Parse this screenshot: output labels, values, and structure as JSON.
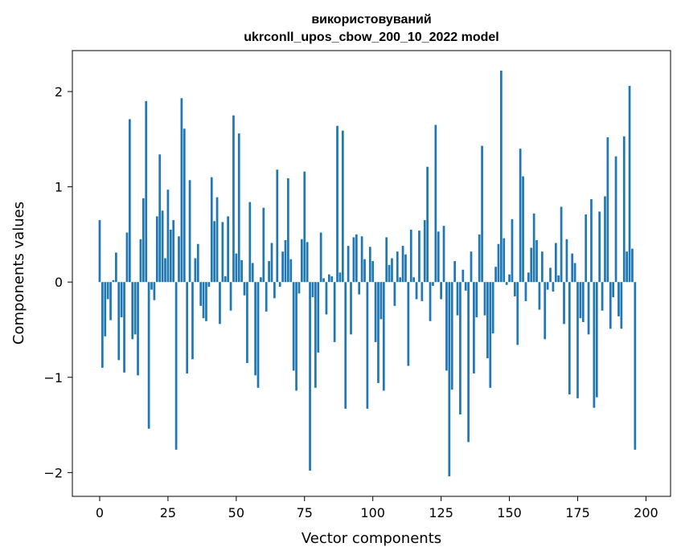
{
  "chart_data": {
    "type": "bar",
    "title_line1": "використовуваний",
    "title_line2": "ukrconll_upos_cbow_200_10_2022 model",
    "xlabel": "Vector components",
    "ylabel": "Components values",
    "xlim": [
      -10,
      209
    ],
    "ylim": [
      -2.25,
      2.43
    ],
    "xticks": [
      0,
      25,
      50,
      75,
      100,
      125,
      150,
      175,
      200
    ],
    "yticks": [
      -2,
      -1,
      0,
      1,
      2
    ],
    "ytick_labels": [
      "−2",
      "−1",
      "0",
      "1",
      "2"
    ],
    "grid": false,
    "bar_color": "#1f77b4",
    "values": [
      0.65,
      -0.9,
      -0.57,
      -0.18,
      -0.4,
      0.02,
      0.31,
      -0.82,
      -0.37,
      -0.95,
      0.52,
      1.71,
      -0.6,
      -0.55,
      -0.98,
      0.45,
      0.88,
      1.9,
      -1.54,
      -0.08,
      -0.19,
      0.69,
      1.34,
      0.75,
      0.25,
      0.97,
      0.55,
      0.65,
      -1.76,
      0.48,
      1.93,
      1.61,
      -0.96,
      1.07,
      -0.81,
      0.25,
      0.4,
      -0.25,
      -0.38,
      -0.41,
      -0.05,
      1.1,
      0.64,
      0.89,
      -0.44,
      0.63,
      0.06,
      0.69,
      -0.3,
      1.75,
      0.3,
      1.56,
      0.23,
      -0.14,
      -0.85,
      0.84,
      0.2,
      -0.98,
      -1.11,
      0.05,
      0.78,
      -0.31,
      0.22,
      0.41,
      -0.17,
      1.18,
      -0.05,
      0.32,
      0.44,
      1.09,
      0.24,
      -0.93,
      -1.14,
      -0.12,
      0.45,
      1.16,
      0.42,
      -1.98,
      -0.16,
      -1.11,
      -0.74,
      0.52,
      0.04,
      -0.34,
      0.08,
      0.06,
      -0.63,
      1.64,
      0.1,
      1.59,
      -1.33,
      0.38,
      -0.55,
      0.47,
      0.5,
      -0.13,
      0.48,
      0.24,
      -1.33,
      0.37,
      0.22,
      -0.63,
      -1.06,
      -0.39,
      -1.14,
      0.47,
      0.18,
      0.25,
      -0.25,
      0.32,
      0.05,
      0.38,
      0.29,
      -0.88,
      0.55,
      0.05,
      -0.18,
      0.54,
      -0.2,
      0.65,
      1.21,
      -0.41,
      -0.04,
      1.65,
      0.53,
      -0.18,
      0.59,
      -0.93,
      -2.04,
      -1.13,
      0.22,
      -0.35,
      -1.39,
      0.13,
      -0.09,
      -1.68,
      0.32,
      -0.96,
      -0.37,
      0.5,
      1.43,
      -0.35,
      -0.8,
      -1.11,
      -0.54,
      0.16,
      0.4,
      2.22,
      0.46,
      -0.03,
      0.08,
      0.66,
      -0.15,
      -0.66,
      1.4,
      1.11,
      -0.2,
      0.1,
      0.36,
      0.72,
      0.44,
      -0.29,
      0.32,
      -0.6,
      -0.08,
      0.15,
      -0.1,
      0.41,
      0.07,
      0.79,
      -0.44,
      0.45,
      -1.18,
      0.3,
      0.2,
      -1.22,
      -0.38,
      -0.42,
      0.71,
      -0.55,
      0.87,
      -1.32,
      -1.21,
      0.74,
      -0.3,
      0.9,
      1.52,
      -0.49,
      -0.16,
      1.32,
      -0.36,
      -0.49,
      1.53,
      0.32,
      2.06,
      0.35,
      -1.76
    ]
  }
}
